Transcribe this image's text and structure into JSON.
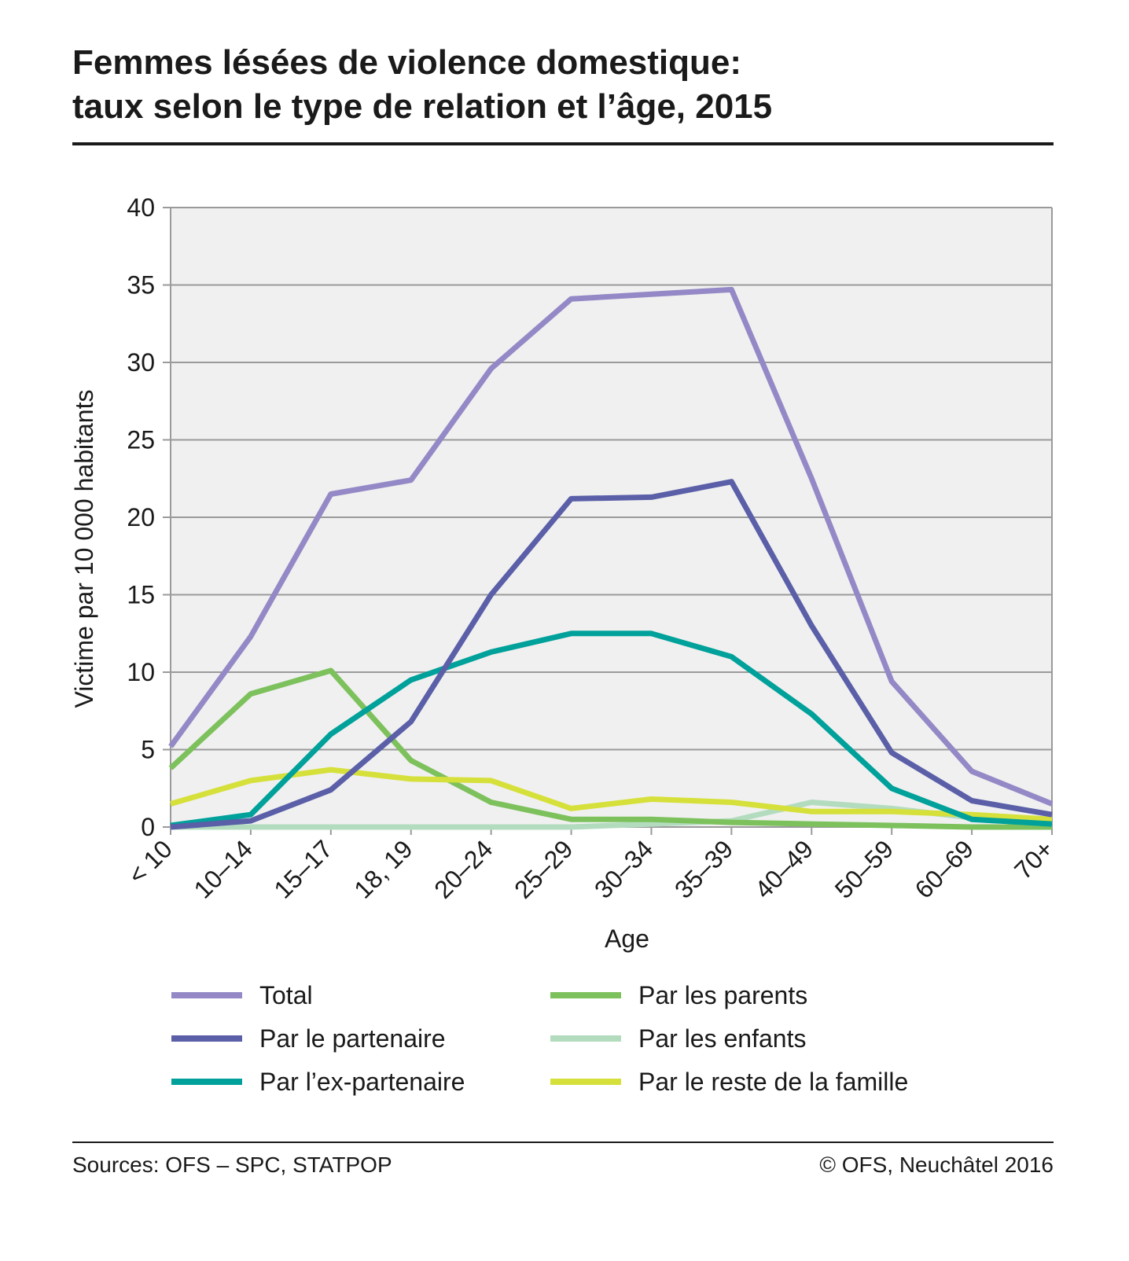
{
  "header": {
    "title_line1": "Femmes lésées de violence domestique:",
    "title_line2": "taux selon le type de relation et l’âge, 2015"
  },
  "footer": {
    "sources": "Sources: OFS – SPC, STATPOP",
    "copyright": "© OFS, Neuchâtel 2016"
  },
  "chart_data": {
    "type": "line",
    "title": "Femmes lésées de violence domestique: taux selon le type de relation et l’âge, 2015",
    "xlabel": "Age",
    "ylabel": "Victime par 10 000 habitants",
    "ylim": [
      0,
      40
    ],
    "yticks": [
      "0",
      "5",
      "10",
      "15",
      "20",
      "25",
      "30",
      "35",
      "40"
    ],
    "grid": true,
    "legend_position": "bottom",
    "categories": [
      "< 10",
      "10–14",
      "15–17",
      "18, 19",
      "20–24",
      "25–29",
      "30–34",
      "35–39",
      "40–49",
      "50–59",
      "60–69",
      "70+"
    ],
    "series": [
      {
        "name": "Par les enfants",
        "color": "#b3dcbf",
        "values": [
          0,
          0,
          0,
          0,
          0,
          0,
          0.2,
          0.4,
          1.6,
          1.2,
          0.6,
          0.2
        ]
      },
      {
        "name": "Par les parents",
        "color": "#7dc15d",
        "values": [
          3.8,
          8.6,
          10.1,
          4.3,
          1.6,
          0.5,
          0.5,
          0.3,
          0.2,
          0.1,
          0,
          0
        ]
      },
      {
        "name": "Par le reste de la famille",
        "color": "#d6e03a",
        "values": [
          1.5,
          3.0,
          3.7,
          3.1,
          3.0,
          1.2,
          1.8,
          1.6,
          1.0,
          1.0,
          0.8,
          0.5
        ]
      },
      {
        "name": "Par l’ex-partenaire",
        "color": "#00a19a",
        "values": [
          0.1,
          0.8,
          6.0,
          9.5,
          11.3,
          12.5,
          12.5,
          11.0,
          7.3,
          2.5,
          0.5,
          0.2
        ]
      },
      {
        "name": "Par le partenaire",
        "color": "#5a5fa8",
        "values": [
          0,
          0.4,
          2.4,
          6.8,
          15.0,
          21.2,
          21.3,
          22.3,
          13.0,
          4.8,
          1.7,
          0.8
        ]
      },
      {
        "name": "Total",
        "color": "#9489c6",
        "values": [
          5.2,
          12.3,
          21.5,
          22.4,
          29.6,
          34.1,
          34.4,
          34.7,
          22.5,
          9.4,
          3.6,
          1.5
        ]
      }
    ],
    "legend": [
      {
        "name": "Total",
        "color": "#9489c6"
      },
      {
        "name": "Par le partenaire",
        "color": "#5a5fa8"
      },
      {
        "name": "Par l’ex-partenaire",
        "color": "#00a19a"
      },
      {
        "name": "Par les parents",
        "color": "#7dc15d"
      },
      {
        "name": "Par les enfants",
        "color": "#b3dcbf"
      },
      {
        "name": "Par le reste de la famille",
        "color": "#d6e03a"
      }
    ],
    "plot_background": "#f0f0f0",
    "grid_color": "#9a9a9a"
  }
}
